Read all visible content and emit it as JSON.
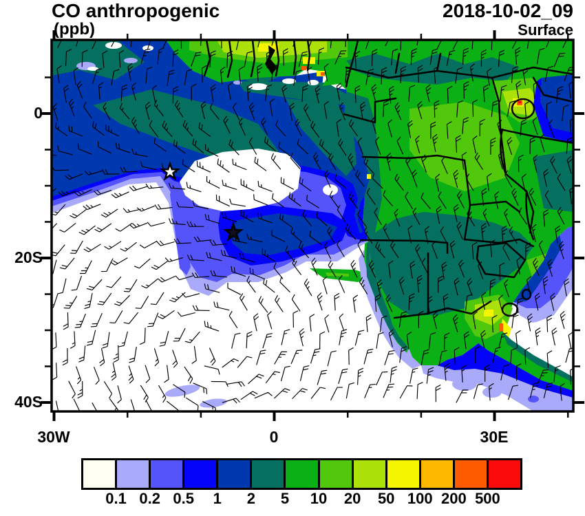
{
  "header": {
    "title": "CO anthropogenic",
    "units": "(ppb)",
    "datetime": "2018-10-02_09",
    "level": "Surface"
  },
  "axes": {
    "y_ticks": [
      "0",
      "20S",
      "40S"
    ],
    "x_ticks": [
      "30W",
      "0",
      "30E"
    ]
  },
  "colorbar": {
    "values": [
      "0.1",
      "0.2",
      "0.5",
      "1",
      "2",
      "5",
      "10",
      "20",
      "50",
      "100",
      "200",
      "500"
    ],
    "colors": [
      "#FFFFF2",
      "#AAAAFA",
      "#5454FA",
      "#0404FA",
      "#0038B0",
      "#067060",
      "#0AB014",
      "#52C80C",
      "#ACE20A",
      "#F5F500",
      "#FFBA00",
      "#FD5C00",
      "#FA0A0A"
    ]
  },
  "map": {
    "frame_color": "#000000",
    "wind_barb_color": "#000000",
    "markers": [
      {
        "type": "star",
        "style": "open"
      },
      {
        "type": "star",
        "style": "filled"
      }
    ]
  }
}
